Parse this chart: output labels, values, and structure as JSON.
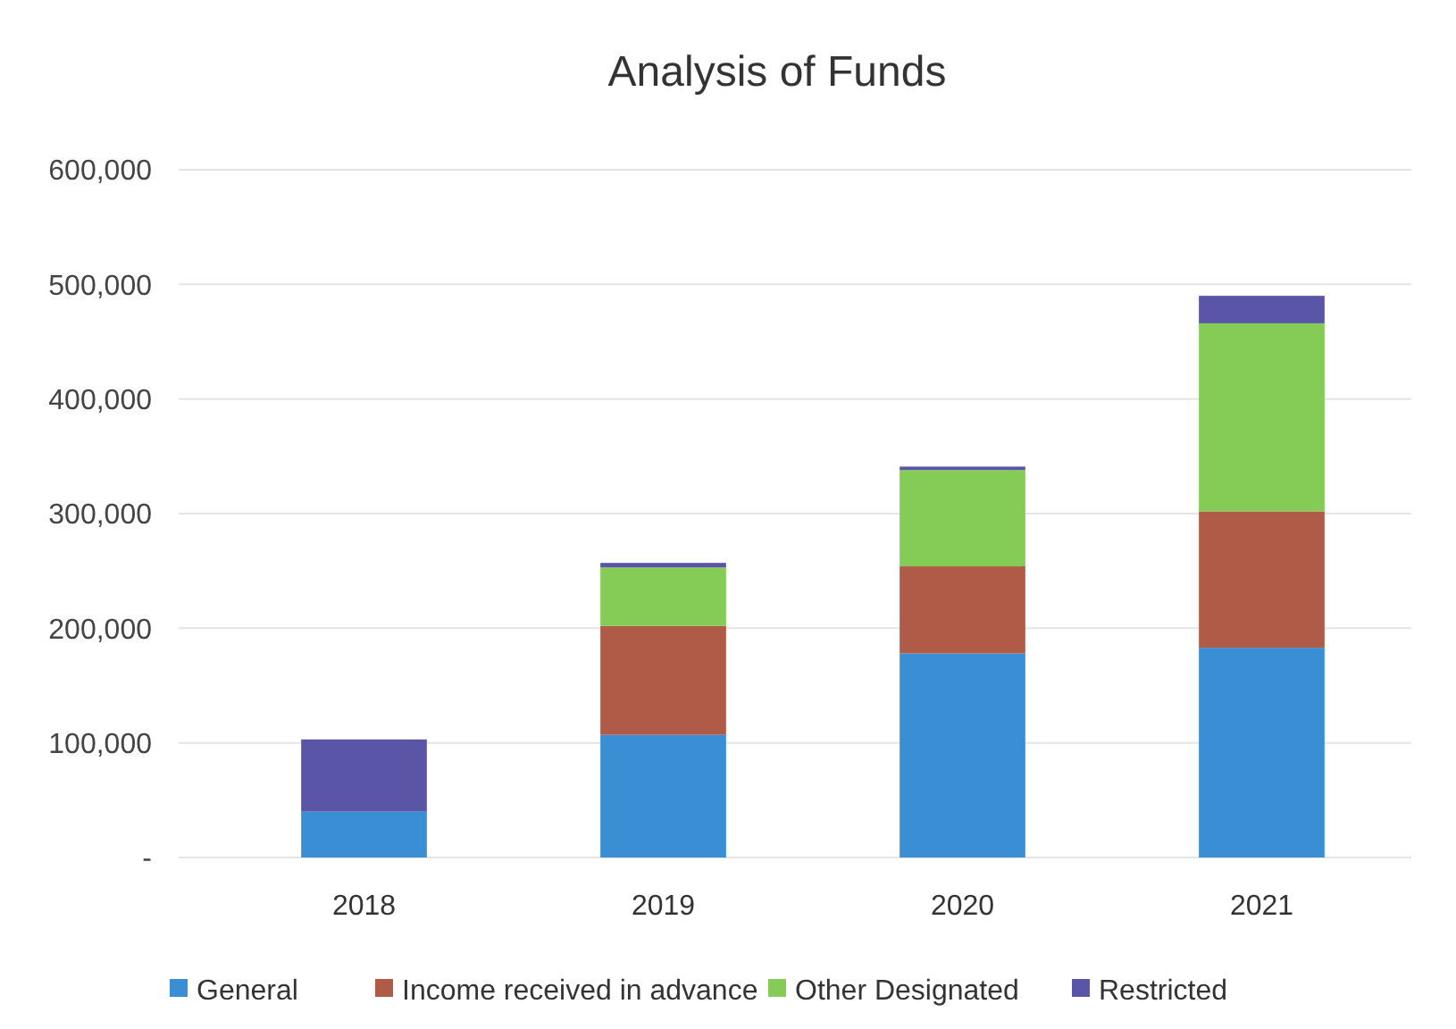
{
  "chart_data": {
    "type": "bar",
    "title": "Analysis of Funds",
    "categories": [
      "2018",
      "2019",
      "2020",
      "2021"
    ],
    "stacked": true,
    "series": [
      {
        "name": "General",
        "color": "#3a8fd4",
        "values": [
          40000,
          107000,
          178000,
          183000
        ]
      },
      {
        "name": "Income received in advance",
        "color": "#b05a48",
        "values": [
          0,
          95000,
          76000,
          119000
        ]
      },
      {
        "name": "Other Designated",
        "color": "#84cc55",
        "values": [
          0,
          51000,
          84000,
          164000
        ]
      },
      {
        "name": "Restricted",
        "color": "#5b55a8",
        "values": [
          63000,
          4000,
          3000,
          24000
        ]
      }
    ],
    "ylim": [
      0,
      600000
    ],
    "yticks": [
      {
        "value": 0,
        "label": "-"
      },
      {
        "value": 100000,
        "label": "100,000"
      },
      {
        "value": 200000,
        "label": "200,000"
      },
      {
        "value": 300000,
        "label": "300,000"
      },
      {
        "value": 400000,
        "label": "400,000"
      },
      {
        "value": 500000,
        "label": "500,000"
      },
      {
        "value": 600000,
        "label": "600,000"
      }
    ],
    "grid": "y",
    "legend": "bottom"
  }
}
